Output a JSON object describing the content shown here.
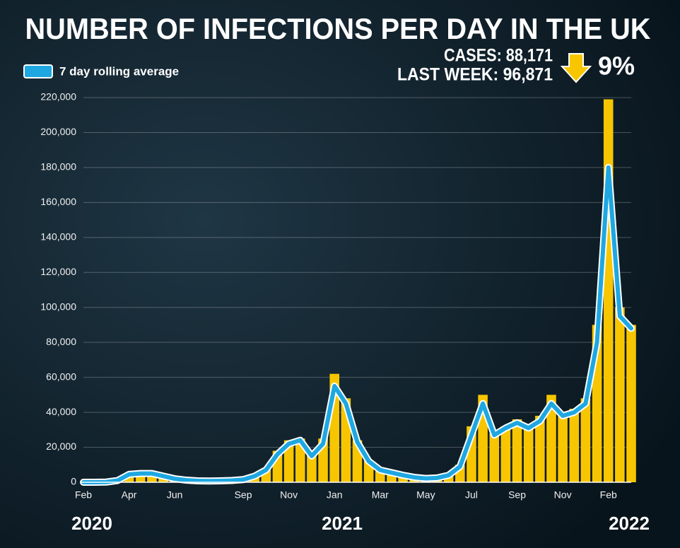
{
  "chart_data": {
    "type": "bar-line",
    "title": "NUMBER OF INFECTIONS PER DAY IN THE UK",
    "annotations": [
      "CASES: 88,171",
      "LAST WEEK: 96,871",
      "9%"
    ],
    "years": [
      "2020",
      "2021",
      "2022"
    ],
    "categories": [
      "Feb",
      null,
      null,
      null,
      "Apr",
      null,
      null,
      null,
      "Jun",
      null,
      null,
      null,
      null,
      null,
      "Sep",
      null,
      null,
      null,
      "Nov",
      null,
      null,
      null,
      "Jan",
      null,
      null,
      null,
      "Mar",
      null,
      null,
      null,
      "May",
      null,
      null,
      null,
      "Jul",
      null,
      null,
      null,
      "Sep",
      null,
      null,
      null,
      "Nov",
      null,
      null,
      null,
      "Feb",
      null,
      null
    ],
    "bars": {
      "color": "#f7c600",
      "values": [
        0,
        0,
        100,
        1500,
        5000,
        5500,
        5200,
        3800,
        2200,
        1300,
        900,
        800,
        900,
        1100,
        1800,
        4000,
        8000,
        18000,
        24000,
        25000,
        16000,
        25000,
        62000,
        48000,
        24000,
        12500,
        7500,
        5800,
        4200,
        3000,
        2400,
        2700,
        4500,
        10000,
        32000,
        50000,
        28000,
        32000,
        36000,
        33000,
        38000,
        50000,
        40000,
        42000,
        48000,
        90000,
        219000,
        100000,
        90000
      ]
    },
    "series": [
      {
        "name": "7 day rolling average",
        "color": "#1ea7e1",
        "values": [
          0,
          0,
          100,
          1000,
          4500,
          5000,
          5000,
          3500,
          2000,
          1200,
          800,
          700,
          800,
          1000,
          1500,
          3500,
          7000,
          16000,
          22000,
          24000,
          15000,
          22000,
          55000,
          45000,
          23000,
          12000,
          7000,
          5500,
          4000,
          2800,
          2200,
          2500,
          4000,
          9000,
          27000,
          45000,
          27000,
          31000,
          34000,
          31000,
          35000,
          45000,
          38000,
          40000,
          45000,
          80000,
          180000,
          95000,
          88000
        ]
      }
    ],
    "ylim": [
      0,
      220000
    ],
    "yticks": [
      0,
      {
        "value": 20000,
        "label": "20,000"
      },
      {
        "value": 40000,
        "label": "40,000"
      },
      {
        "value": 60000,
        "label": "60,000"
      },
      {
        "value": 80000,
        "label": "80,000"
      },
      {
        "value": 100000,
        "label": "100,000"
      },
      {
        "value": 120000,
        "label": "120,000"
      },
      {
        "value": 140000,
        "label": "140,000"
      },
      {
        "value": 160000,
        "label": "160,000"
      },
      {
        "value": 180000,
        "label": "180,000"
      },
      {
        "value": 200000,
        "label": "200,000"
      },
      {
        "value": 220000,
        "label": "220,000"
      }
    ],
    "grid": true
  }
}
